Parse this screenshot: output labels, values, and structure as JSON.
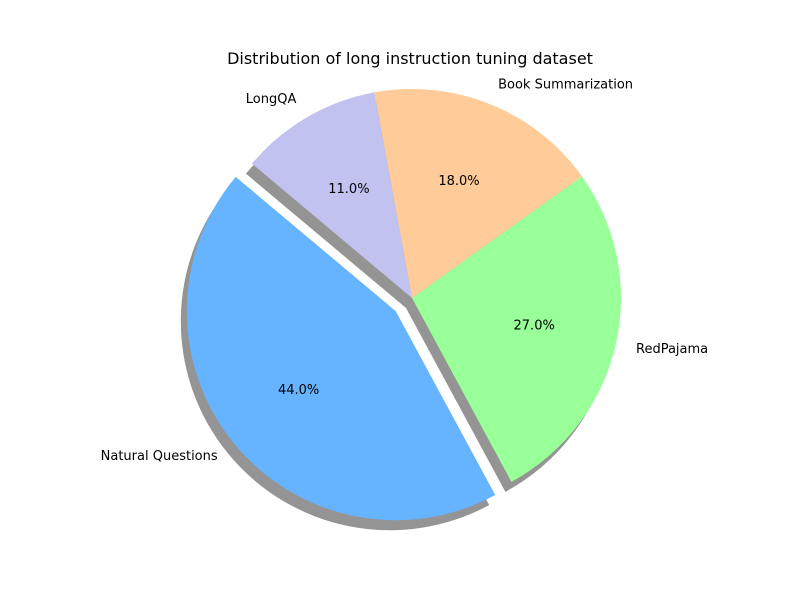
{
  "chart_data": {
    "type": "pie",
    "title": "Distribution of long instruction tuning dataset",
    "categories": [
      "Natural Questions",
      "RedPajama",
      "Book Summarization",
      "LongQA"
    ],
    "values": [
      44.0,
      27.0,
      18.0,
      11.0
    ],
    "value_labels": [
      "44.0%",
      "27.0%",
      "18.0%",
      "11.0%"
    ],
    "colors": [
      "#66b3ff",
      "#99ff99",
      "#ffcc99",
      "#c2c2f0"
    ],
    "exploded": [
      true,
      false,
      false,
      false
    ],
    "shadow": true,
    "start_angle_deg": 140,
    "direction": "counterclockwise",
    "legend": "none"
  }
}
